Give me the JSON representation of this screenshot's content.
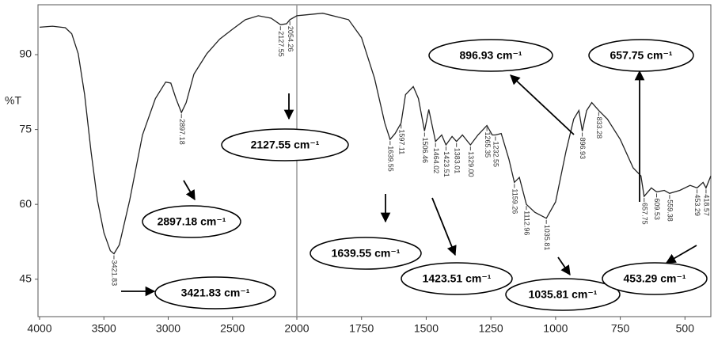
{
  "chart_data": {
    "type": "line",
    "y_label": "%T",
    "x": [
      4000,
      3900,
      3800,
      3750,
      3700,
      3650,
      3600,
      3550,
      3500,
      3450,
      3421.83,
      3380,
      3300,
      3200,
      3100,
      3020,
      2980,
      2940,
      2897.18,
      2860,
      2800,
      2700,
      2600,
      2500,
      2400,
      2300,
      2200,
      2127.55,
      2080,
      2054.26,
      2000,
      1900,
      1800,
      1750,
      1700,
      1660,
      1639.55,
      1620,
      1597.11,
      1580,
      1550,
      1530,
      1506.46,
      1490,
      1464.02,
      1440,
      1423.51,
      1400,
      1383.01,
      1360,
      1329,
      1300,
      1265.35,
      1245,
      1232.55,
      1210,
      1180,
      1159.26,
      1140,
      1112.96,
      1080,
      1035.81,
      1000,
      960,
      930,
      910,
      896.93,
      880,
      860,
      833.28,
      800,
      750,
      700,
      670,
      657.75,
      630,
      609.53,
      580,
      559.38,
      520,
      480,
      453.29,
      430,
      418.57,
      400
    ],
    "series": [
      {
        "name": "%T",
        "color": "#222222",
        "values": [
          95.5,
          95.7,
          95.4,
          94.2,
          90.2,
          82,
          70.6,
          60.8,
          54.3,
          50.7,
          50.1,
          51.9,
          60.8,
          73.9,
          81.2,
          84.5,
          84.3,
          81.2,
          78.4,
          80.4,
          86.1,
          90.2,
          93.1,
          95.1,
          97,
          97.8,
          97.3,
          96,
          96.2,
          97,
          97.8,
          98.3,
          97,
          93.4,
          85.3,
          76.3,
          73,
          74.2,
          76.3,
          82,
          83.6,
          81.2,
          74.7,
          79,
          72.6,
          73.9,
          71.9,
          73.6,
          72.6,
          73.9,
          71.9,
          73.9,
          75.8,
          73.9,
          73.9,
          74.2,
          69,
          64.4,
          65.4,
          60,
          58.4,
          57.2,
          60.5,
          70.6,
          77.1,
          78.8,
          74.7,
          78.8,
          80.4,
          78.8,
          77.1,
          73,
          67.3,
          65.7,
          61.6,
          63.3,
          62.5,
          62.8,
          62.2,
          62.8,
          63.8,
          63.3,
          64.4,
          63.3,
          65.7
        ]
      }
    ],
    "xlim": [
      4000,
      400
    ],
    "x_scale_break": 2000,
    "xticks": [
      4000,
      3500,
      3000,
      2500,
      2000,
      1750,
      1500,
      1250,
      1000,
      750,
      500
    ],
    "ylim": [
      37.5,
      100
    ],
    "yticks": [
      45,
      60,
      75,
      90
    ],
    "peak_labels": [
      "3421.83",
      "2897.18",
      "2127.55",
      "2054.26",
      "1639.55",
      "1597.11",
      "1506.46",
      "1464.02",
      "1423.51",
      "1383.01",
      "1329.00",
      "1265.35",
      "1232.55",
      "1159.26",
      "1112.96",
      "1035.81",
      "896.93",
      "833.28",
      "657.75",
      "609.53",
      "559.38",
      "453.29",
      "418.57"
    ],
    "callouts": [
      "896.93 cm⁻¹",
      "657.75 cm⁻¹",
      "2127.55 cm⁻¹",
      "2897.18 cm⁻¹",
      "1639.55 cm⁻¹",
      "1423.51 cm⁻¹",
      "1035.81 cm⁻¹",
      "453.29 cm⁻¹",
      "3421.83 cm⁻¹"
    ]
  }
}
